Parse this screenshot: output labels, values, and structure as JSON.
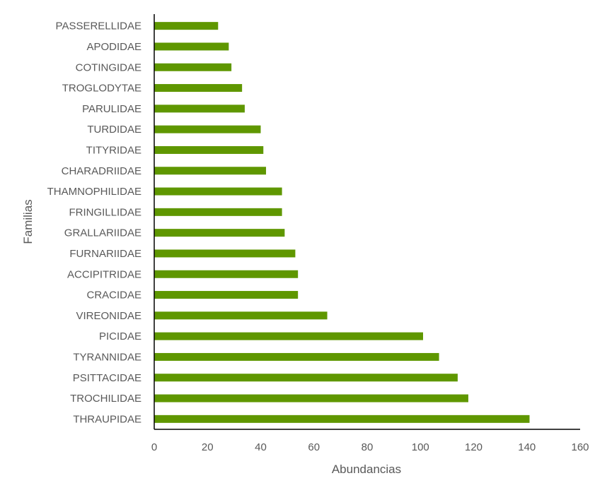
{
  "chart_data": {
    "type": "bar",
    "orientation": "horizontal",
    "categories": [
      "THRAUPIDAE",
      "TROCHILIDAE",
      "PSITTACIDAE",
      "TYRANNIDAE",
      "PICIDAE",
      "VIREONIDAE",
      "CRACIDAE",
      "ACCIPITRIDAE",
      "FURNARIIDAE",
      "GRALLARIIDAE",
      "FRINGILLIDAE",
      "THAMNOPHILIDAE",
      "CHARADRIIDAE",
      "TITYRIDAE",
      "TURDIDAE",
      "PARULIDAE",
      "TROGLODYTAE",
      "COTINGIDAE",
      "APODIDAE",
      "PASSERELLIDAE"
    ],
    "values": [
      141,
      118,
      114,
      107,
      101,
      65,
      54,
      54,
      53,
      49,
      48,
      48,
      42,
      41,
      40,
      34,
      33,
      29,
      28,
      24
    ],
    "xlabel": "Abundancias",
    "ylabel": "Familias",
    "xlim": [
      0,
      160
    ],
    "xticks": [
      0,
      20,
      40,
      60,
      80,
      100,
      120,
      140,
      160
    ],
    "grid": false,
    "legend": "none",
    "colors": {
      "bar": "#5f9700",
      "axis": "#000000",
      "text": "#595959"
    }
  }
}
